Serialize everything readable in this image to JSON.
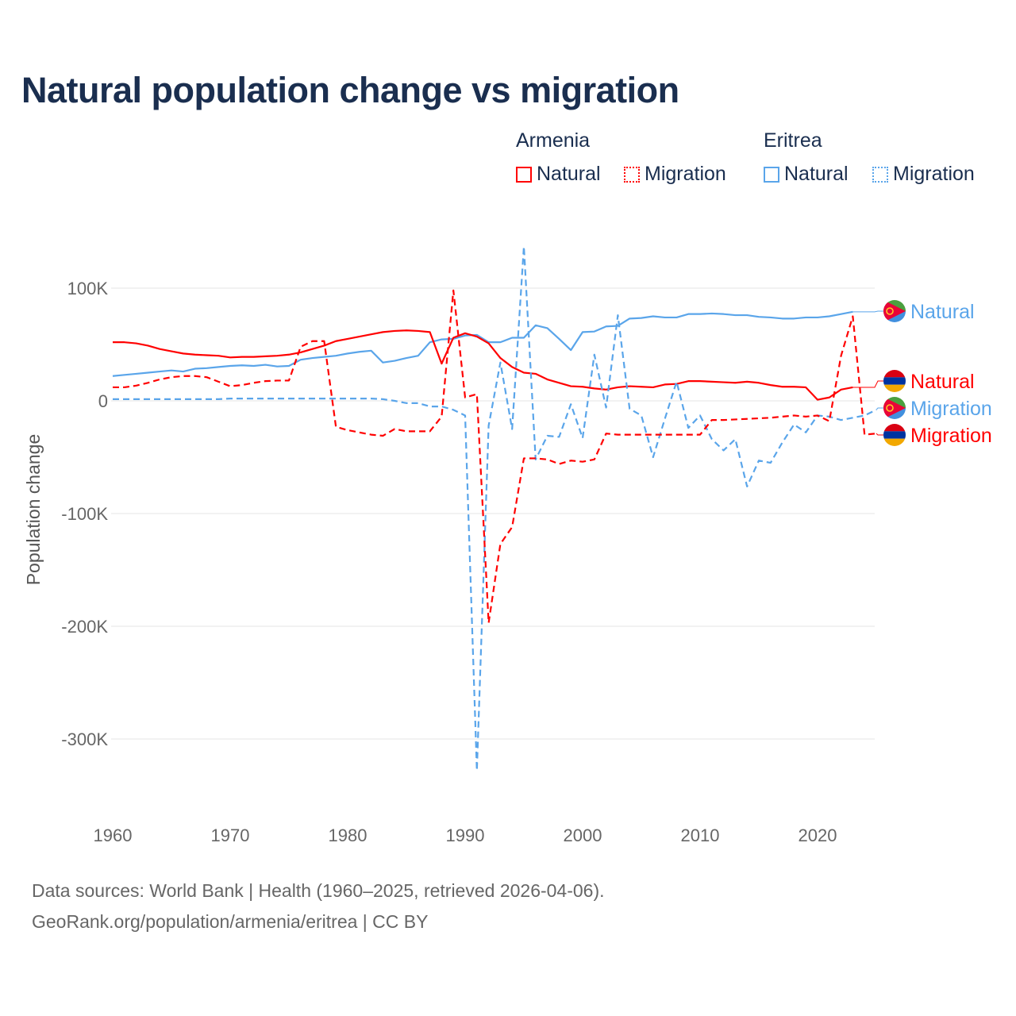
{
  "title": "Natural population change vs migration",
  "legend": {
    "groups": [
      {
        "name": "Armenia",
        "color": "#ff0000",
        "items": [
          "Natural",
          "Migration"
        ]
      },
      {
        "name": "Eritrea",
        "color": "#5aa5ea",
        "items": [
          "Natural",
          "Migration"
        ]
      }
    ]
  },
  "footer": {
    "line1": "Data sources: World Bank | Health (1960–2025, retrieved 2026-04-06).",
    "line2": "GeoRank.org/population/armenia/eritrea | CC BY"
  },
  "chart_data": {
    "type": "line",
    "title": "Natural population change vs migration",
    "xlabel": "",
    "ylabel": "Population change",
    "xlim": [
      1960,
      2025
    ],
    "ylim": [
      -350000,
      150000
    ],
    "x_ticks": [
      1960,
      1970,
      1980,
      1990,
      2000,
      2010,
      2020
    ],
    "x_tick_labels": [
      "1960",
      "1970",
      "1980",
      "1990",
      "2000",
      "2010",
      "2020"
    ],
    "y_ticks": [
      100000,
      0,
      -100000,
      -200000,
      -300000
    ],
    "y_tick_labels": [
      "100K",
      "0",
      "-100K",
      "-200K",
      "-300K"
    ],
    "grid": true,
    "units": "thousands",
    "series": [
      {
        "name": "Eritrea Natural",
        "label": "Natural",
        "country": "Eritrea",
        "color": "#5aa5ea",
        "dash": false,
        "start": 1960,
        "values": [
          22,
          23,
          24,
          25,
          26,
          27,
          26,
          28.5,
          29,
          30,
          31,
          31.5,
          31,
          32,
          30.5,
          31,
          36.5,
          38,
          39,
          40,
          42,
          43.5,
          44.5,
          34,
          35.5,
          38,
          40,
          52,
          54.5,
          55,
          58,
          58.5,
          52,
          52,
          56,
          56,
          67,
          64.5,
          55,
          45,
          61,
          61.5,
          66,
          66.5,
          73,
          73.5,
          75,
          74,
          74,
          77,
          77,
          77.5,
          77,
          76,
          76,
          74.5,
          74,
          73,
          73,
          74,
          74,
          75,
          77,
          79
        ]
      },
      {
        "name": "Armenia Natural",
        "label": "Natural",
        "country": "Armenia",
        "color": "#ff0000",
        "dash": false,
        "start": 1960,
        "values": [
          52,
          52,
          51,
          49,
          46,
          44,
          42,
          41,
          40.5,
          40,
          38.5,
          39,
          39,
          39.5,
          40,
          41,
          43,
          46,
          49,
          53,
          55,
          57,
          59,
          61,
          62,
          62.5,
          62,
          61,
          33,
          56,
          60,
          57,
          51,
          38,
          30,
          25,
          24,
          19,
          16,
          13,
          12.5,
          11,
          10,
          12,
          13,
          12.5,
          12,
          14.5,
          15,
          17.5,
          17.5,
          17,
          16.5,
          16,
          17,
          16,
          14,
          12.5,
          12.5,
          12,
          1,
          3,
          10,
          12
        ]
      },
      {
        "name": "Eritrea Migration",
        "label": "Migration",
        "country": "Eritrea",
        "color": "#5aa5ea",
        "dash": true,
        "start": 1960,
        "values": [
          1.5,
          1.5,
          1.5,
          1.5,
          1.5,
          1.5,
          1.5,
          1.5,
          1.5,
          1.5,
          2,
          2,
          2,
          2,
          2,
          2,
          2,
          2,
          2,
          2,
          2,
          2,
          2,
          1.5,
          0,
          -2,
          -2,
          -5,
          -5,
          -8,
          -13,
          -328,
          -22,
          34,
          -25,
          137,
          -52,
          -31,
          -32,
          -3,
          -33,
          41,
          -6,
          76,
          -7,
          -13,
          -50,
          -16,
          17,
          -24,
          -13,
          -34,
          -44,
          -34,
          -76,
          -53,
          -55,
          -37,
          -21,
          -28,
          -13,
          -14,
          -17,
          -15,
          -13,
          -8
        ]
      },
      {
        "name": "Armenia Migration",
        "label": "Migration",
        "country": "Armenia",
        "color": "#ff0000",
        "dash": true,
        "start": 1960,
        "values": [
          12,
          12,
          13.5,
          16,
          19,
          21,
          22,
          22,
          21,
          17,
          13,
          14,
          16,
          17.5,
          18,
          18,
          48,
          53,
          53,
          -23,
          -26,
          -28,
          -30,
          -31,
          -25,
          -27,
          -27,
          -27,
          -14,
          98,
          3,
          6,
          -197,
          -127,
          -112,
          -51,
          -51,
          -52,
          -56,
          -53,
          -54,
          -52,
          -29,
          -30,
          -30,
          -30,
          -30,
          -30,
          -30,
          -30,
          -30,
          -17,
          -17,
          -16.5,
          -16,
          -15.5,
          -15,
          -14,
          -13,
          -14,
          -13,
          -18,
          40,
          75,
          -30,
          -29
        ]
      }
    ]
  }
}
